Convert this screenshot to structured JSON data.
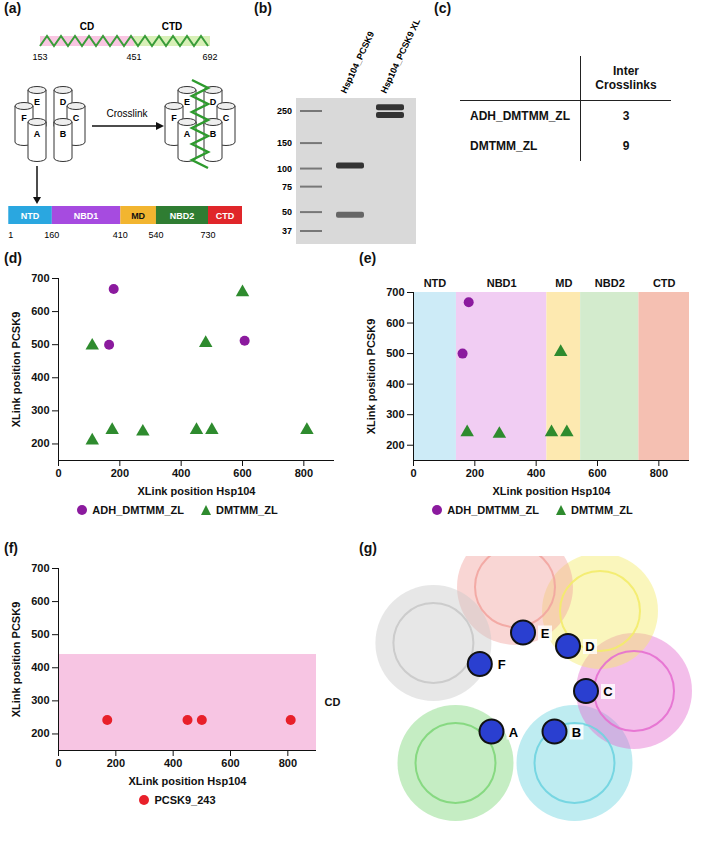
{
  "panels": {
    "a": {
      "letter": "(a)",
      "pcsk9": {
        "domains": [
          {
            "label": "CD",
            "start": 153,
            "end": 451,
            "color": "#f9c6e2"
          },
          {
            "label": "CTD",
            "start": 451,
            "end": 692,
            "color": "#d9f0b8"
          }
        ]
      },
      "subunits": [
        "A",
        "B",
        "C",
        "D",
        "E",
        "F"
      ],
      "arrow_label": "Crosslink",
      "hsp104": {
        "domains": [
          {
            "label": "NTD",
            "start": 1,
            "color": "#2aa7e0"
          },
          {
            "label": "NBD1",
            "start": 160,
            "color": "#a64be0"
          },
          {
            "label": "MD",
            "start": 410,
            "color": "#f2b530"
          },
          {
            "label": "NBD2",
            "start": 540,
            "color": "#2f7d32"
          },
          {
            "label": "CTD",
            "start": 730,
            "color": "#e0262a"
          }
        ]
      }
    },
    "b": {
      "letter": "(b)",
      "ladder_kda": [
        250,
        150,
        100,
        75,
        50,
        37
      ],
      "lanes": [
        {
          "label": "Hsp104_PCSK9",
          "bands_kda": [
            105,
            48
          ]
        },
        {
          "label": "Hsp104_PCSK9 XL",
          "bands_kda": [
            265,
            235
          ]
        }
      ]
    },
    "c": {
      "letter": "(c)",
      "header": "Inter Crosslinks",
      "rows": [
        {
          "label": "ADH_DMTMM_ZL",
          "value": 3
        },
        {
          "label": "DMTMM_ZL",
          "value": 9
        }
      ]
    },
    "g": {
      "letter": "(g)",
      "subunits": [
        "A",
        "B",
        "C",
        "D",
        "E",
        "F"
      ]
    }
  },
  "chart_data": [
    {
      "panel": "(d)",
      "type": "scatter",
      "xlabel": "XLink position Hsp104",
      "ylabel": "XLink position PCSK9",
      "xlim": [
        0,
        900
      ],
      "ylim": [
        150,
        700
      ],
      "xticks": [
        0,
        200,
        400,
        600,
        800
      ],
      "yticks": [
        200,
        300,
        400,
        500,
        600,
        700
      ],
      "legend": "bottom",
      "series": [
        {
          "name": "ADH_DMTMM_ZL",
          "color": "#8b1a9e",
          "marker": "circle",
          "x": [
            165,
            180,
            607
          ],
          "y": [
            500,
            668,
            512
          ]
        },
        {
          "name": "DMTMM_ZL",
          "color": "#2e8b2e",
          "marker": "triangle",
          "x": [
            110,
            110,
            175,
            275,
            450,
            480,
            500,
            600,
            810
          ],
          "y": [
            497,
            210,
            242,
            237,
            242,
            505,
            242,
            658,
            242
          ]
        }
      ]
    },
    {
      "panel": "(e)",
      "type": "scatter",
      "xlabel": "XLink position Hsp104",
      "ylabel": "XLink position PCSK9",
      "xlim": [
        0,
        900
      ],
      "ylim": [
        150,
        700
      ],
      "xticks": [
        0,
        200,
        400,
        600,
        800
      ],
      "yticks": [
        200,
        300,
        400,
        500,
        600,
        700
      ],
      "legend": "bottom",
      "regions": [
        {
          "label": "NTD",
          "start": 0,
          "end": 140,
          "color": "#cdebf7"
        },
        {
          "label": "NBD1",
          "start": 140,
          "end": 435,
          "color": "#f1cdf3"
        },
        {
          "label": "MD",
          "start": 435,
          "end": 545,
          "color": "#fde9b0"
        },
        {
          "label": "NBD2",
          "start": 545,
          "end": 735,
          "color": "#d3ebcd"
        },
        {
          "label": "CTD",
          "start": 735,
          "end": 900,
          "color": "#f5c0b2"
        }
      ],
      "series": [
        {
          "name": "ADH_DMTMM_ZL",
          "color": "#8b1a9e",
          "marker": "circle",
          "x": [
            160,
            180
          ],
          "y": [
            500,
            668
          ]
        },
        {
          "name": "DMTMM_ZL",
          "color": "#2e8b2e",
          "marker": "triangle",
          "x": [
            175,
            280,
            450,
            480,
            500
          ],
          "y": [
            242,
            237,
            242,
            505,
            242
          ]
        }
      ]
    },
    {
      "panel": "(f)",
      "type": "scatter",
      "xlabel": "XLink position Hsp104",
      "ylabel": "XLink position PCSK9",
      "xlim": [
        0,
        900
      ],
      "ylim": [
        150,
        700
      ],
      "xticks": [
        0,
        200,
        400,
        600,
        800
      ],
      "yticks": [
        200,
        300,
        400,
        500,
        600,
        700
      ],
      "legend": "bottom",
      "bands": [
        {
          "label": "CD",
          "start": 150,
          "end": 440,
          "color": "#f7c5e3"
        }
      ],
      "series": [
        {
          "name": "PCSK9_243",
          "color": "#e8202a",
          "marker": "circle",
          "x": [
            170,
            450,
            500,
            810
          ],
          "y": [
            242,
            242,
            242,
            242
          ]
        }
      ]
    }
  ]
}
